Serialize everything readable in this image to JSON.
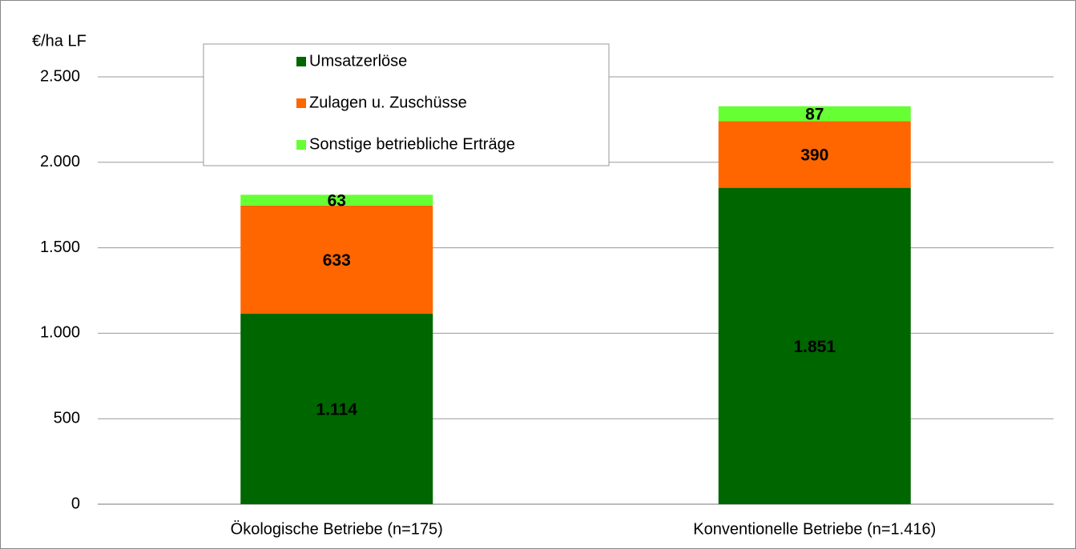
{
  "chart_data": {
    "type": "stacked_bar",
    "y_axis_label": "€/ha LF",
    "categories": [
      "Ökologische Betriebe (n=175)",
      "Konventionelle Betriebe (n=1.416)"
    ],
    "series": [
      {
        "name": "Umsatzerlöse",
        "color": "#006600",
        "values": [
          1114,
          1851
        ],
        "value_labels": [
          "1.114",
          "1.851"
        ]
      },
      {
        "name": "Zulagen u. Zuschüsse",
        "color": "#ff6600",
        "values": [
          633,
          390
        ]
      },
      {
        "name": "Sonstige betriebliche Erträge",
        "color": "#66ff33",
        "values": [
          63,
          87
        ]
      }
    ],
    "ylim": [
      0,
      2500
    ],
    "yticks": [
      0,
      500,
      {
        "value": 1000,
        "label": "1.000"
      },
      {
        "value": 1500,
        "label": "1.500"
      },
      {
        "value": 2000,
        "label": "2.000"
      },
      {
        "value": 2500,
        "label": "2.500"
      }
    ],
    "grid": true,
    "legend": "top-left"
  }
}
